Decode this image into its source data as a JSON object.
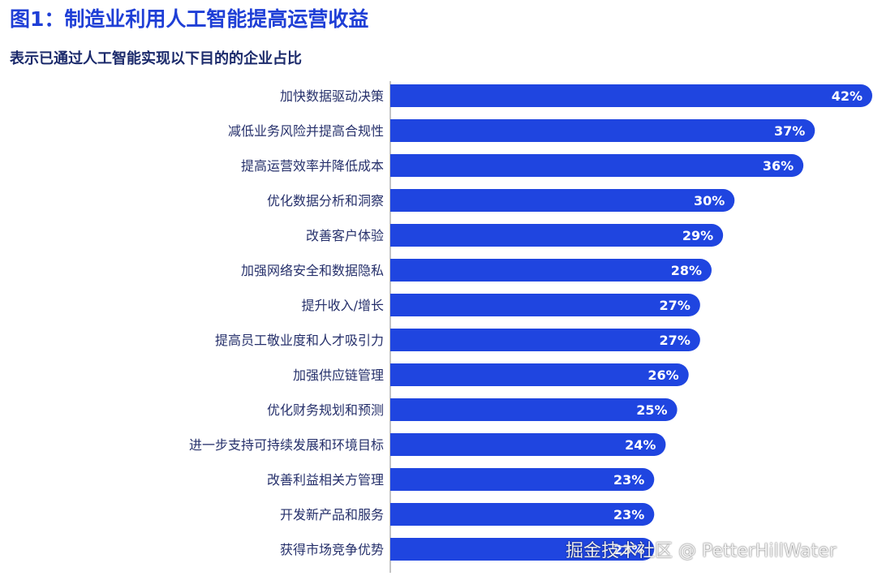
{
  "chart_data": {
    "type": "bar",
    "orientation": "horizontal",
    "title": "图1：制造业利用人工智能提高运营收益",
    "subtitle": "表示已通过人工智能实现以下目的的企业占比",
    "categories": [
      "加快数据驱动决策",
      "减低业务风险并提高合规性",
      "提高运营效率并降低成本",
      "优化数据分析和洞察",
      "改善客户体验",
      "加强网络安全和数据隐私",
      "提升收入/增长",
      "提高员工敬业度和人才吸引力",
      "加强供应链管理",
      "优化财务规划和预测",
      "进一步支持可持续发展和环境目标",
      "改善利益相关方管理",
      "开发新产品和服务",
      "获得市场竞争优势"
    ],
    "values": [
      42,
      37,
      36,
      30,
      29,
      28,
      27,
      27,
      26,
      25,
      24,
      23,
      23,
      23
    ],
    "value_labels": [
      "42%",
      "37%",
      "36%",
      "30%",
      "29%",
      "28%",
      "27%",
      "27%",
      "26%",
      "25%",
      "24%",
      "23%",
      "23%",
      "23%"
    ],
    "unit": "%",
    "xlim": [
      0,
      42
    ],
    "grid": false,
    "colors": {
      "bar": "#1f45e0",
      "title": "#1f3fd6",
      "subtitle": "#1b2a6b",
      "axis": "#8a8a8a"
    }
  },
  "watermark": "掘金技术社区 @ PetterHillWater"
}
